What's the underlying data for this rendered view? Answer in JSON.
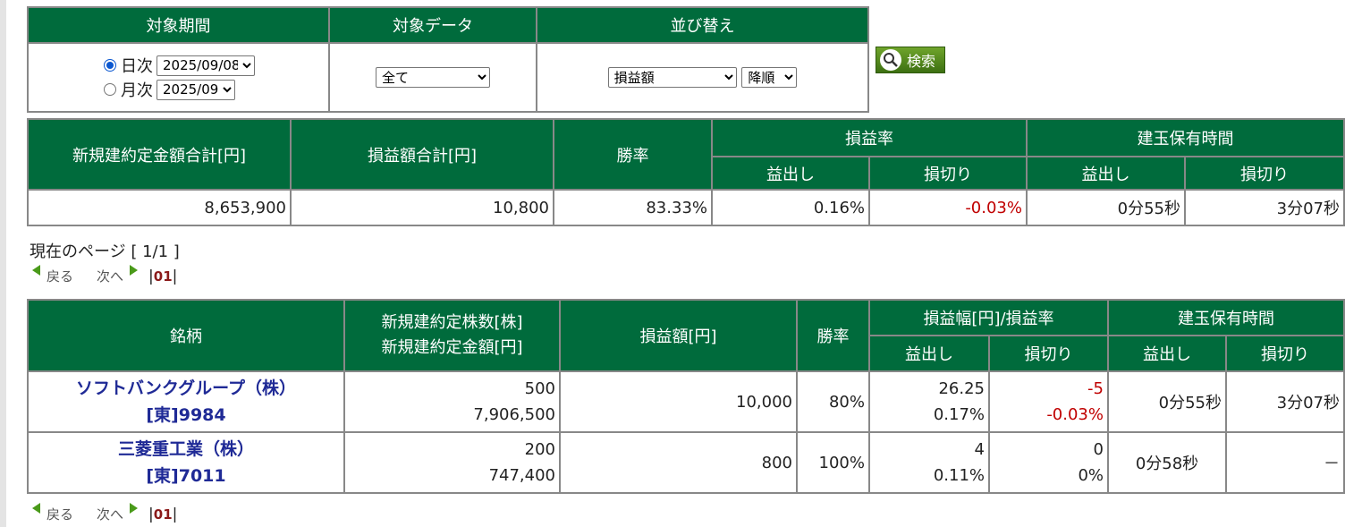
{
  "filter": {
    "headers": [
      "対象期間",
      "対象データ",
      "並び替え"
    ],
    "daily_label": "日次",
    "daily_value": "2025/09/08",
    "monthly_label": "月次",
    "monthly_value": "2025/09",
    "data_value": "全て",
    "sort_value": "損益額",
    "order_value": "降順",
    "search_label": "検索"
  },
  "summary": {
    "h_total_amount": "新規建約定金額合計[円]",
    "h_total_pl": "損益額合計[円]",
    "h_winrate": "勝率",
    "h_plrate": "損益率",
    "h_holdtime": "建玉保有時間",
    "h_profit": "益出し",
    "h_loss": "損切り",
    "total_amount": "8,653,900",
    "total_pl": "10,800",
    "winrate": "83.33%",
    "rate_profit": "0.16%",
    "rate_loss": "-0.03%",
    "time_profit": "0分55秒",
    "time_loss": "3分07秒"
  },
  "pager": {
    "page_info": "現在のページ [ 1/1 ]",
    "prev": "戻る",
    "next": "次へ",
    "page": "01"
  },
  "detail": {
    "h_stock": "銘柄",
    "h_qty_line1": "新規建約定株数[株]",
    "h_qty_line2": "新規建約定金額[円]",
    "h_pl": "損益額[円]",
    "h_winrate": "勝率",
    "h_range": "損益幅[円]/損益率",
    "h_holdtime": "建玉保有時間",
    "h_profit": "益出し",
    "h_loss": "損切り",
    "rows": [
      {
        "name": "ソフトバンクグループ（株）",
        "code": "[東]9984",
        "qty": "500",
        "amount": "7,906,500",
        "pl": "10,000",
        "winrate": "80%",
        "profit_range": "26.25",
        "profit_rate": "0.17%",
        "loss_range": "-5",
        "loss_rate": "-0.03%",
        "time_profit": "0分55秒",
        "time_loss": "3分07秒"
      },
      {
        "name": "三菱重工業（株）",
        "code": "[東]7011",
        "qty": "200",
        "amount": "747,400",
        "pl": "800",
        "winrate": "100%",
        "profit_range": "4",
        "profit_rate": "0.11%",
        "loss_range": "0",
        "loss_rate": "0%",
        "time_profit": "0分58秒",
        "time_loss": "－"
      }
    ]
  },
  "colors": {
    "header_green": "#006b3c",
    "negative": "#c00000",
    "stock_link": "#1f2a96"
  }
}
